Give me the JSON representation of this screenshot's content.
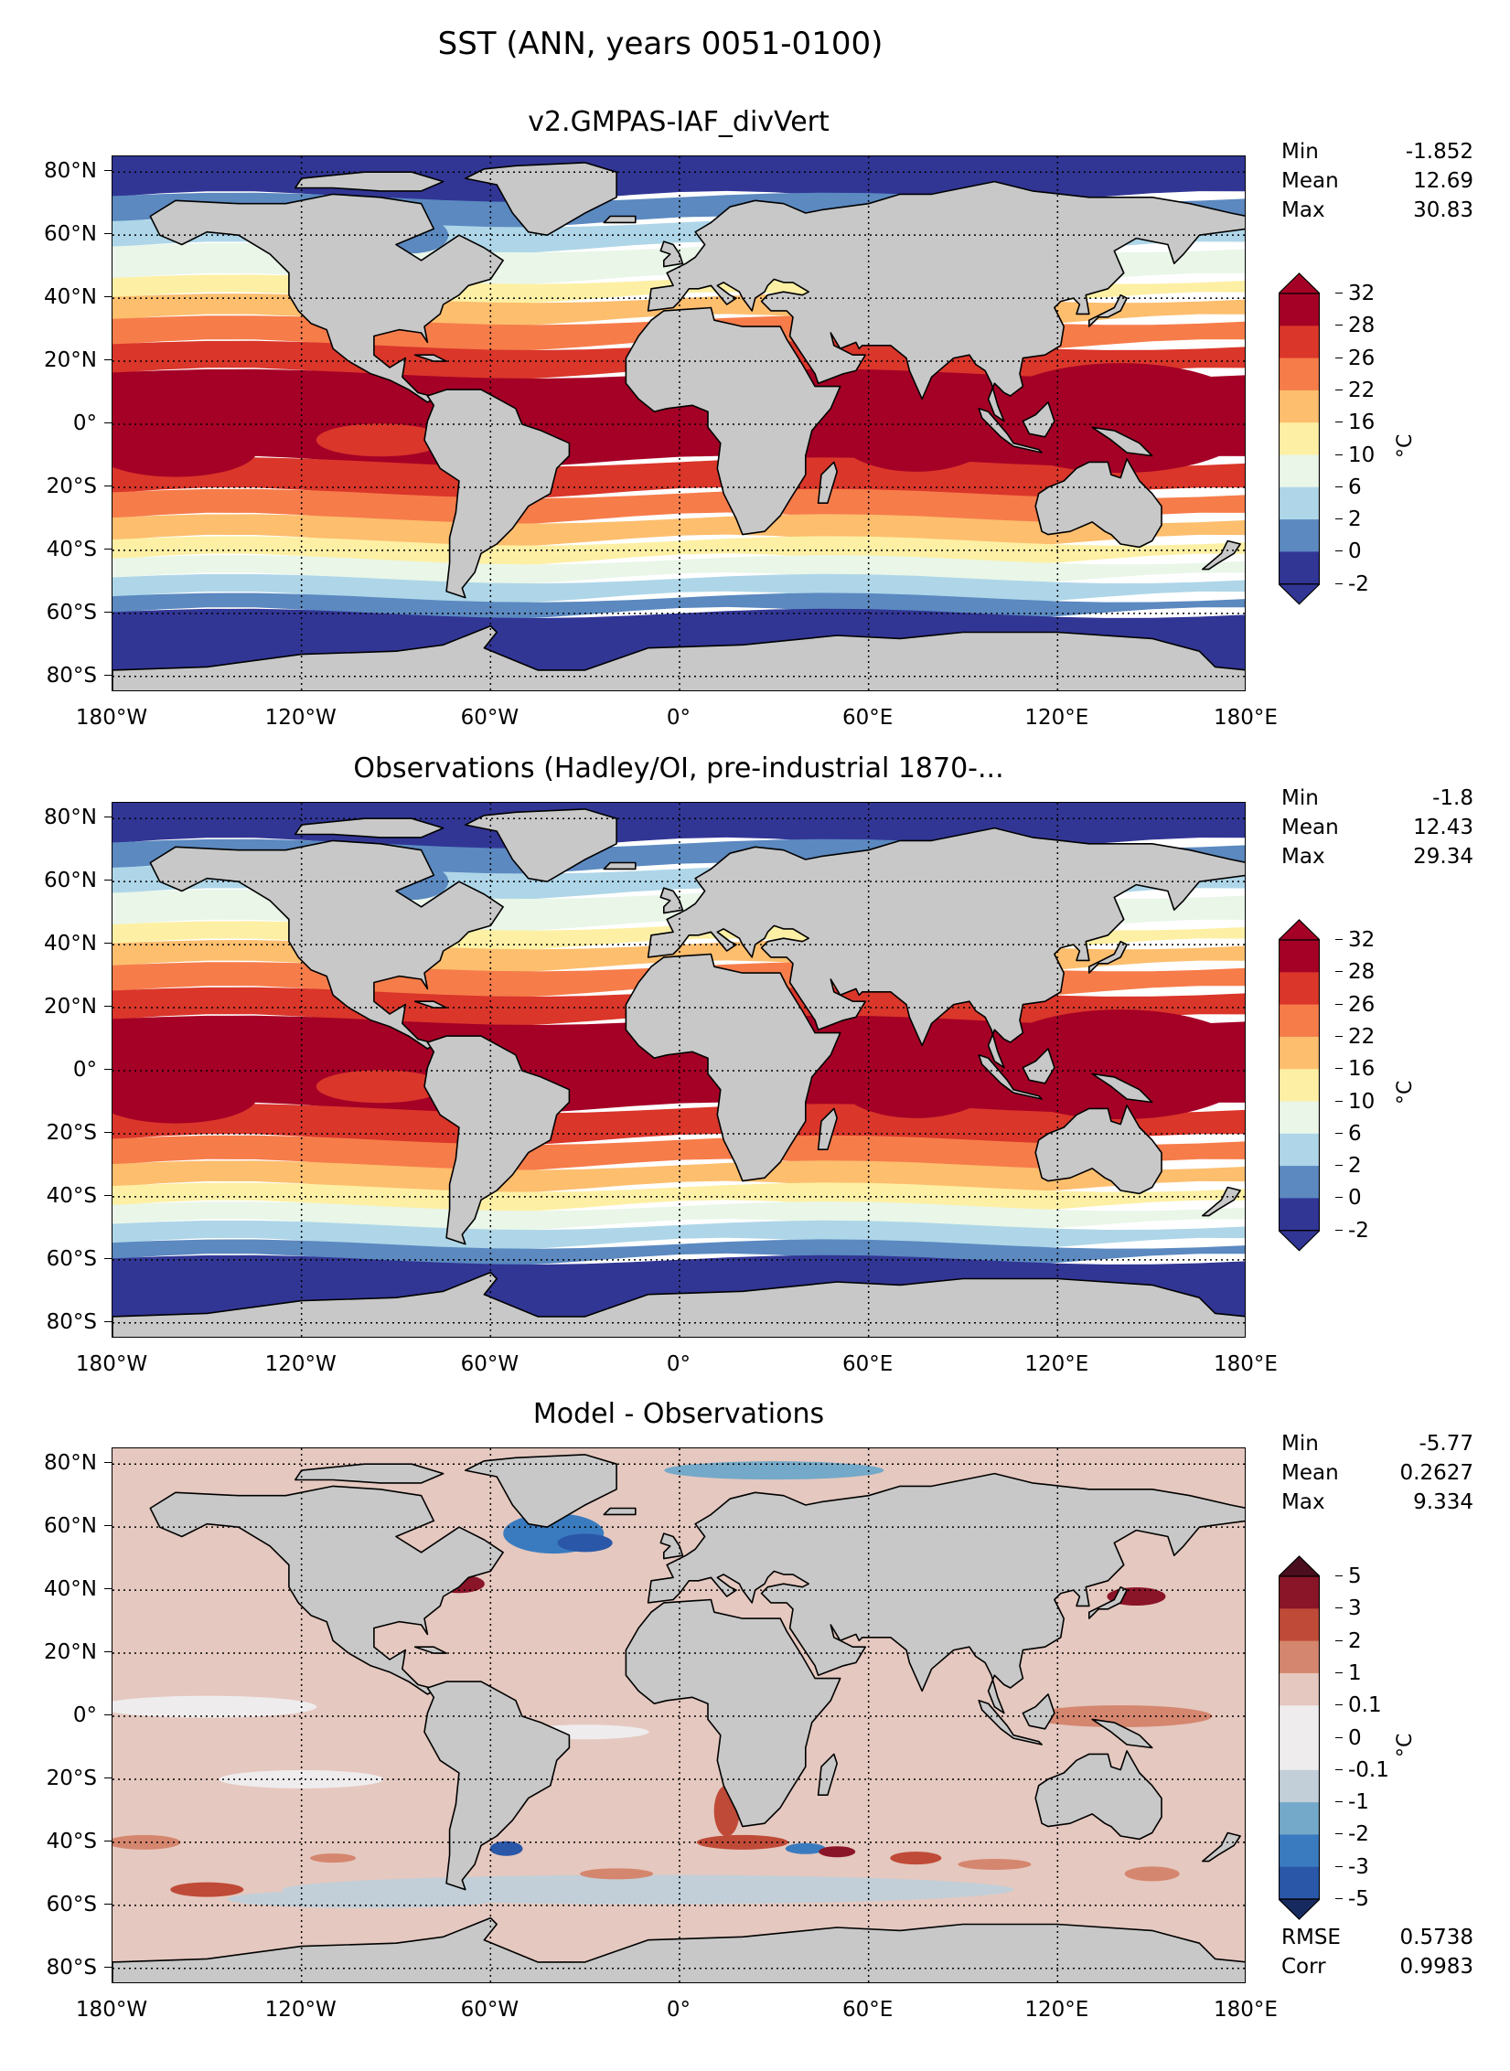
{
  "figure_title": "SST (ANN, years 0051-0100)",
  "lat_ticks": [
    "80°N",
    "60°N",
    "40°N",
    "20°N",
    "0°",
    "20°S",
    "40°S",
    "60°S",
    "80°S"
  ],
  "lon_ticks": [
    "180°W",
    "120°W",
    "60°W",
    "0°",
    "60°E",
    "120°E",
    "180°E"
  ],
  "panels": [
    {
      "title": "v2.GMPAS-IAF_divVert",
      "stats": [
        {
          "label": "Min",
          "value": "-1.852"
        },
        {
          "label": "Mean",
          "value": "12.69"
        },
        {
          "label": "Max",
          "value": "30.83"
        }
      ],
      "colorbar": {
        "ticks": [
          "32",
          "28",
          "26",
          "22",
          "16",
          "10",
          "6",
          "2",
          "0",
          "-2"
        ],
        "unit": "°C",
        "colors": [
          "#313695",
          "#5b89c0",
          "#aed6e8",
          "#e9f6e8",
          "#fdf0a5",
          "#fdbe6e",
          "#f67c4a",
          "#da362a",
          "#a50026"
        ],
        "over": "#a50026",
        "under": "#313695"
      }
    },
    {
      "title": "Observations (Hadley/OI, pre-industrial 1870-...",
      "stats": [
        {
          "label": "Min",
          "value": "-1.8"
        },
        {
          "label": "Mean",
          "value": "12.43"
        },
        {
          "label": "Max",
          "value": "29.34"
        }
      ],
      "colorbar": {
        "ticks": [
          "32",
          "28",
          "26",
          "22",
          "16",
          "10",
          "6",
          "2",
          "0",
          "-2"
        ],
        "unit": "°C",
        "colors": [
          "#313695",
          "#5b89c0",
          "#aed6e8",
          "#e9f6e8",
          "#fdf0a5",
          "#fdbe6e",
          "#f67c4a",
          "#da362a",
          "#a50026"
        ],
        "over": "#a50026",
        "under": "#313695"
      }
    },
    {
      "title": "Model - Observations",
      "stats": [
        {
          "label": "Min",
          "value": "-5.77"
        },
        {
          "label": "Mean",
          "value": "0.2627"
        },
        {
          "label": "Max",
          "value": "9.334"
        }
      ],
      "colorbar": {
        "ticks": [
          "5",
          "3",
          "2",
          "1",
          "0.1",
          "0",
          "-0.1",
          "-1",
          "-2",
          "-3",
          "-5"
        ],
        "unit": "°C",
        "colors": [
          "#2a57a8",
          "#3a7bbf",
          "#74a9c9",
          "#c2cfd8",
          "#efecee",
          "#efecee",
          "#e5c8bf",
          "#d5866f",
          "#bf4a37",
          "#8a1428"
        ],
        "over": "#4a0e1e",
        "under": "#172a60"
      },
      "extra_stats": [
        {
          "label": "RMSE",
          "value": "0.5738"
        },
        {
          "label": "Corr",
          "value": "0.9983"
        }
      ]
    }
  ]
}
